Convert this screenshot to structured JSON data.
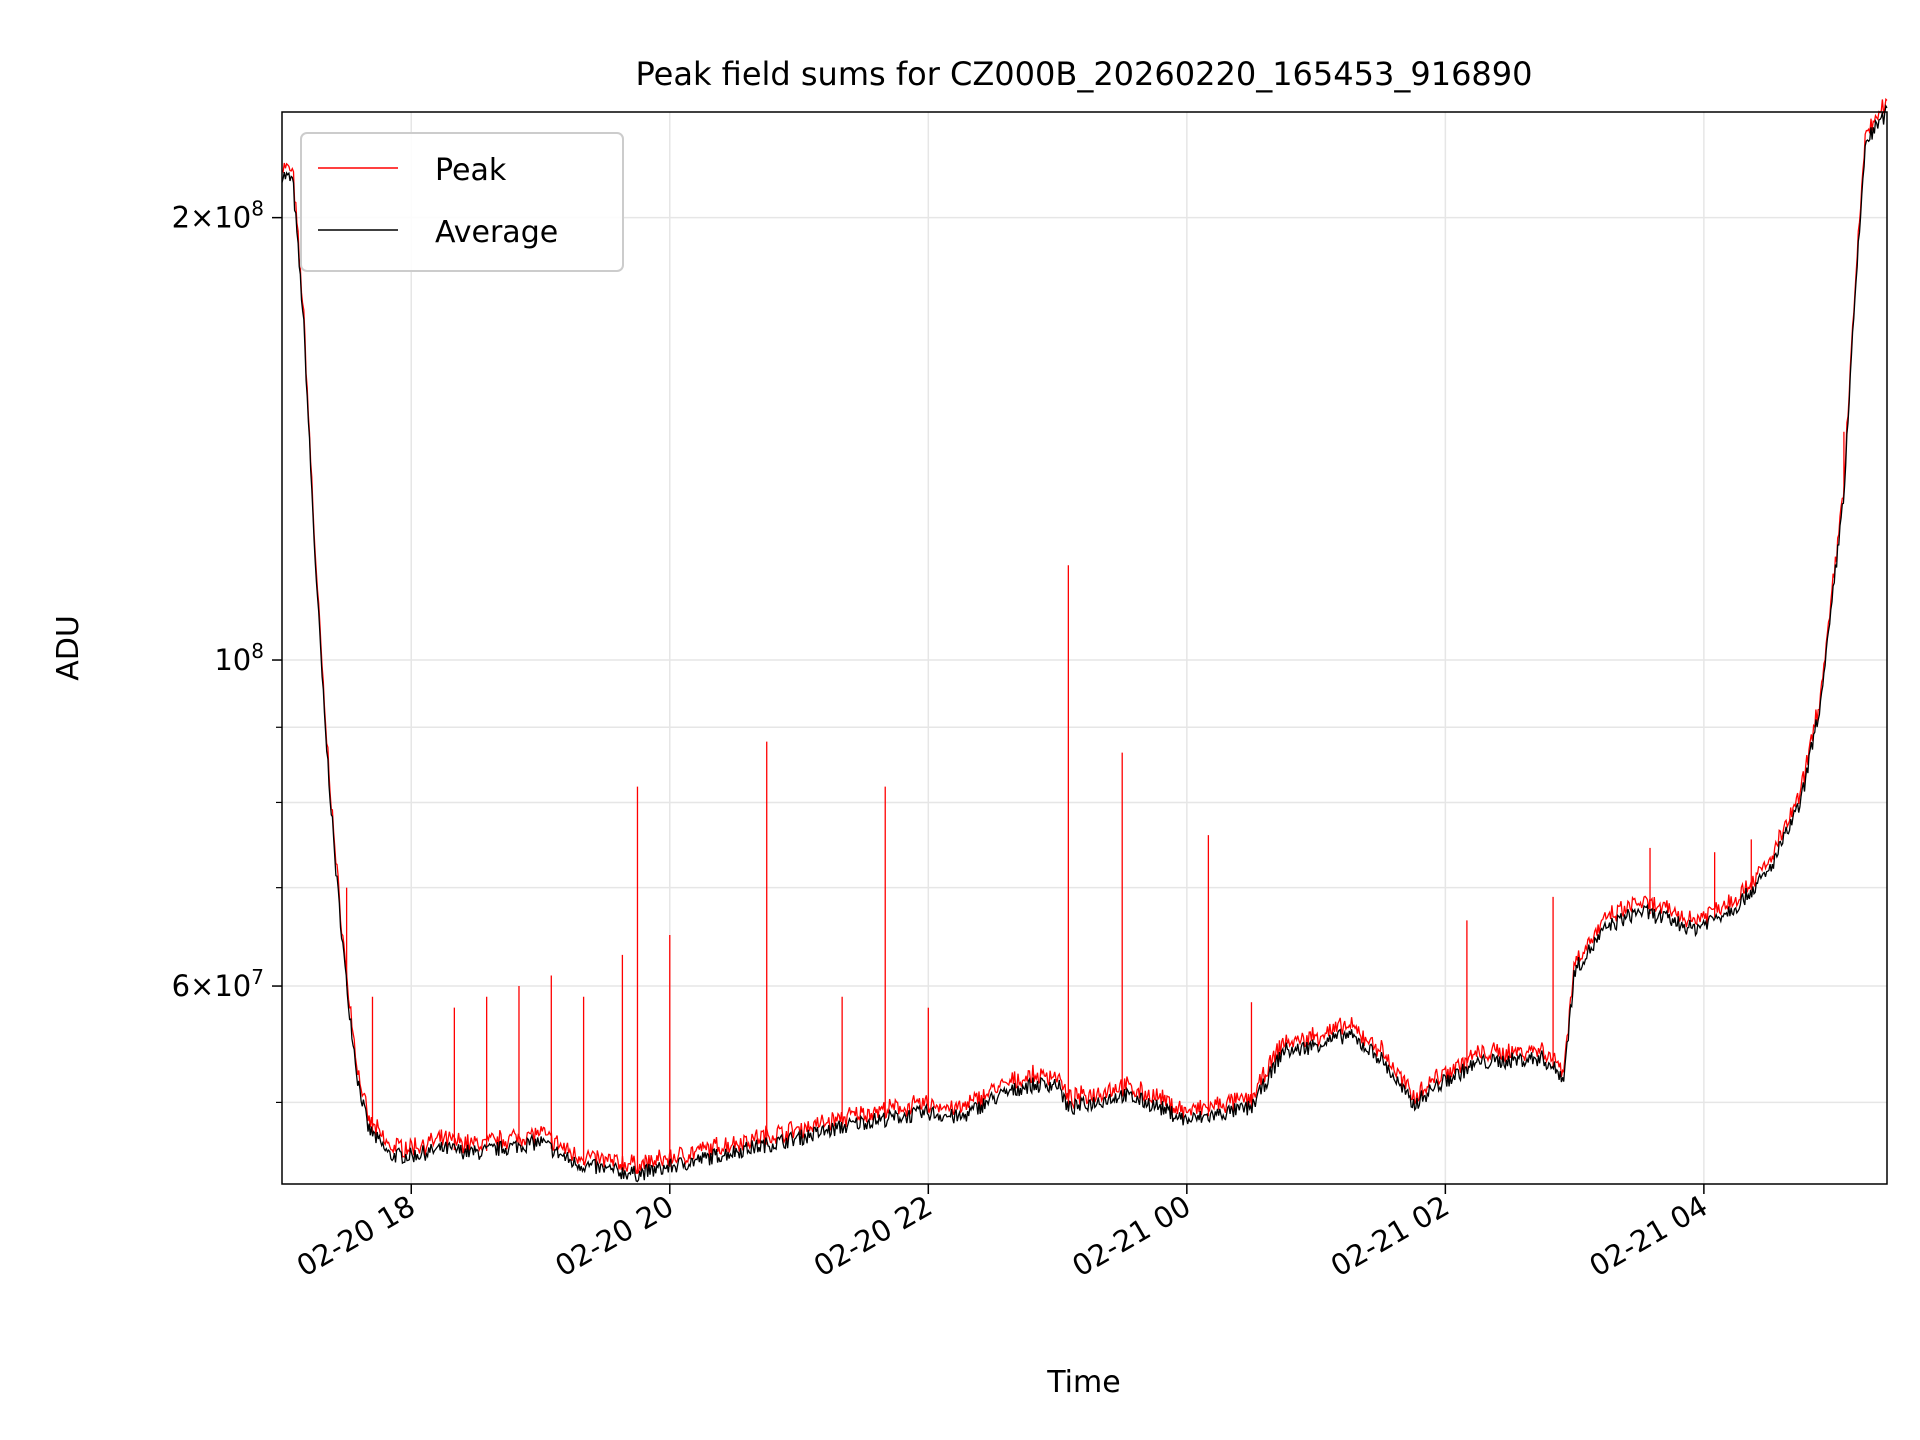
{
  "chart_data": {
    "type": "line",
    "title": "Peak field sums for CZ000B_20260220_165453_916890",
    "xlabel": "Time",
    "ylabel": "ADU",
    "yscale": "log",
    "xlim": [
      "2026-02-20T17:00",
      "2026-02-21T05:25"
    ],
    "ylim": [
      44000000,
      236000000
    ],
    "x_ticks": [
      {
        "t": "2026-02-20T18:00",
        "label": "02-20 18"
      },
      {
        "t": "2026-02-20T20:00",
        "label": "02-20 20"
      },
      {
        "t": "2026-02-20T22:00",
        "label": "02-20 22"
      },
      {
        "t": "2026-02-21T00:00",
        "label": "02-21 00"
      },
      {
        "t": "2026-02-21T02:00",
        "label": "02-21 02"
      },
      {
        "t": "2026-02-21T04:00",
        "label": "02-21 04"
      }
    ],
    "y_major_ticks": [
      {
        "value": 60000000,
        "mantissa": "6",
        "exp": "7"
      },
      {
        "value": 100000000,
        "mantissa": "",
        "exp": "8"
      },
      {
        "value": 200000000,
        "mantissa": "2",
        "exp": "8"
      }
    ],
    "y_minor_ticks": [
      50000000,
      70000000,
      80000000,
      90000000
    ],
    "grid": true,
    "legend_position": "top-left",
    "series": [
      {
        "name": "Average",
        "color": "#000000",
        "x": [
          "2026-02-20T17:00",
          "2026-02-20T17:05",
          "2026-02-20T17:10",
          "2026-02-20T17:15",
          "2026-02-20T17:20",
          "2026-02-20T17:25",
          "2026-02-20T17:30",
          "2026-02-20T17:35",
          "2026-02-20T17:40",
          "2026-02-20T17:45",
          "2026-02-20T17:50",
          "2026-02-20T18:00",
          "2026-02-20T18:15",
          "2026-02-20T18:30",
          "2026-02-20T19:00",
          "2026-02-20T19:15",
          "2026-02-20T19:30",
          "2026-02-20T19:45",
          "2026-02-20T20:00",
          "2026-02-20T20:30",
          "2026-02-20T21:00",
          "2026-02-20T21:30",
          "2026-02-20T22:00",
          "2026-02-20T22:15",
          "2026-02-20T22:30",
          "2026-02-20T22:45",
          "2026-02-20T23:00",
          "2026-02-20T23:05",
          "2026-02-20T23:30",
          "2026-02-20T23:45",
          "2026-02-21T00:00",
          "2026-02-21T00:30",
          "2026-02-21T00:45",
          "2026-02-21T00:50",
          "2026-02-21T01:15",
          "2026-02-21T01:30",
          "2026-02-21T01:45",
          "2026-02-21T01:55",
          "2026-02-21T02:15",
          "2026-02-21T02:45",
          "2026-02-21T02:55",
          "2026-02-21T03:00",
          "2026-02-21T03:15",
          "2026-02-21T03:30",
          "2026-02-21T03:45",
          "2026-02-21T03:55",
          "2026-02-21T04:15",
          "2026-02-21T04:30",
          "2026-02-21T04:45",
          "2026-02-21T04:55",
          "2026-02-21T05:05",
          "2026-02-21T05:10",
          "2026-02-21T05:15",
          "2026-02-21T05:25"
        ],
        "y": [
          214000000,
          212000000,
          170000000,
          120000000,
          90000000,
          72000000,
          60000000,
          52000000,
          48000000,
          47000000,
          46000000,
          46000000,
          46500000,
          46200000,
          47000000,
          45500000,
          45000000,
          44700000,
          45200000,
          46300000,
          47300000,
          48500000,
          49200000,
          48800000,
          50300000,
          51300000,
          51500000,
          49500000,
          50600000,
          49800000,
          48600000,
          49600000,
          54300000,
          54200000,
          55600000,
          53600000,
          49800000,
          51200000,
          53200000,
          53600000,
          52000000,
          61500000,
          65800000,
          67500000,
          66500000,
          65600000,
          68000000,
          71700000,
          80000000,
          95000000,
          130000000,
          175000000,
          225000000,
          236000000
        ]
      },
      {
        "name": "Peak",
        "color": "#ff0000",
        "spikes": [
          {
            "t": "2026-02-20T17:30",
            "y": 70000000
          },
          {
            "t": "2026-02-20T17:42",
            "y": 59000000
          },
          {
            "t": "2026-02-20T18:20",
            "y": 58000000
          },
          {
            "t": "2026-02-20T18:35",
            "y": 59000000
          },
          {
            "t": "2026-02-20T18:50",
            "y": 60000000
          },
          {
            "t": "2026-02-20T19:05",
            "y": 61000000
          },
          {
            "t": "2026-02-20T19:20",
            "y": 59000000
          },
          {
            "t": "2026-02-20T19:38",
            "y": 63000000
          },
          {
            "t": "2026-02-20T19:45",
            "y": 82000000
          },
          {
            "t": "2026-02-20T20:00",
            "y": 65000000
          },
          {
            "t": "2026-02-20T20:45",
            "y": 88000000
          },
          {
            "t": "2026-02-20T21:20",
            "y": 59000000
          },
          {
            "t": "2026-02-20T21:40",
            "y": 82000000
          },
          {
            "t": "2026-02-20T22:00",
            "y": 58000000
          },
          {
            "t": "2026-02-20T23:05",
            "y": 116000000
          },
          {
            "t": "2026-02-20T23:30",
            "y": 86500000
          },
          {
            "t": "2026-02-21T00:10",
            "y": 76000000
          },
          {
            "t": "2026-02-21T00:30",
            "y": 58500000
          },
          {
            "t": "2026-02-21T02:10",
            "y": 66500000
          },
          {
            "t": "2026-02-21T02:50",
            "y": 69000000
          },
          {
            "t": "2026-02-21T03:35",
            "y": 74500000
          },
          {
            "t": "2026-02-21T04:05",
            "y": 74000000
          },
          {
            "t": "2026-02-21T04:22",
            "y": 75500000
          },
          {
            "t": "2026-02-21T05:05",
            "y": 143000000
          }
        ]
      }
    ]
  }
}
